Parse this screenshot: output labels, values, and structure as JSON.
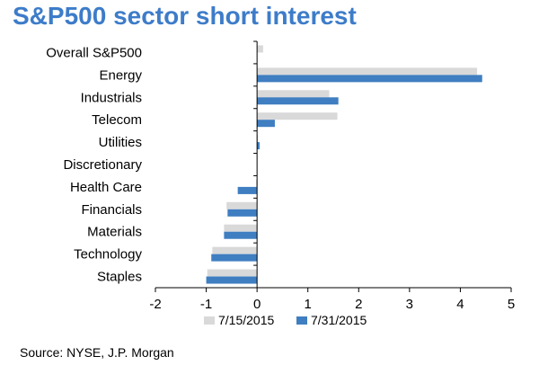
{
  "title": "S&P500 sector short interest",
  "source": "Source: NYSE, J.P. Morgan",
  "colors": {
    "series_1": "#d9d9d9",
    "series_2": "#3f7ec1",
    "axis": "#000000"
  },
  "chart_data": {
    "type": "bar",
    "orientation": "horizontal",
    "title": "S&P500 sector short interest",
    "categories": [
      "Overall S&P500",
      "Energy",
      "Industrials",
      "Telecom",
      "Utilities",
      "Discretionary",
      "Health Care",
      "Financials",
      "Materials",
      "Technology",
      "Staples"
    ],
    "series": [
      {
        "name": "7/15/2015",
        "values": [
          0.12,
          4.33,
          1.42,
          1.58,
          0.02,
          0.0,
          -0.02,
          -0.6,
          -0.65,
          -0.88,
          -0.98
        ]
      },
      {
        "name": "7/31/2015",
        "values": [
          0.0,
          4.43,
          1.6,
          0.35,
          0.05,
          0.0,
          -0.38,
          -0.58,
          -0.65,
          -0.9,
          -1.0
        ]
      }
    ],
    "xlim": [
      -2,
      5
    ],
    "xticks": [
      "-2",
      "-1",
      "0",
      "1",
      "2",
      "3",
      "4",
      "5"
    ],
    "grid": false,
    "legend_position": "bottom"
  }
}
